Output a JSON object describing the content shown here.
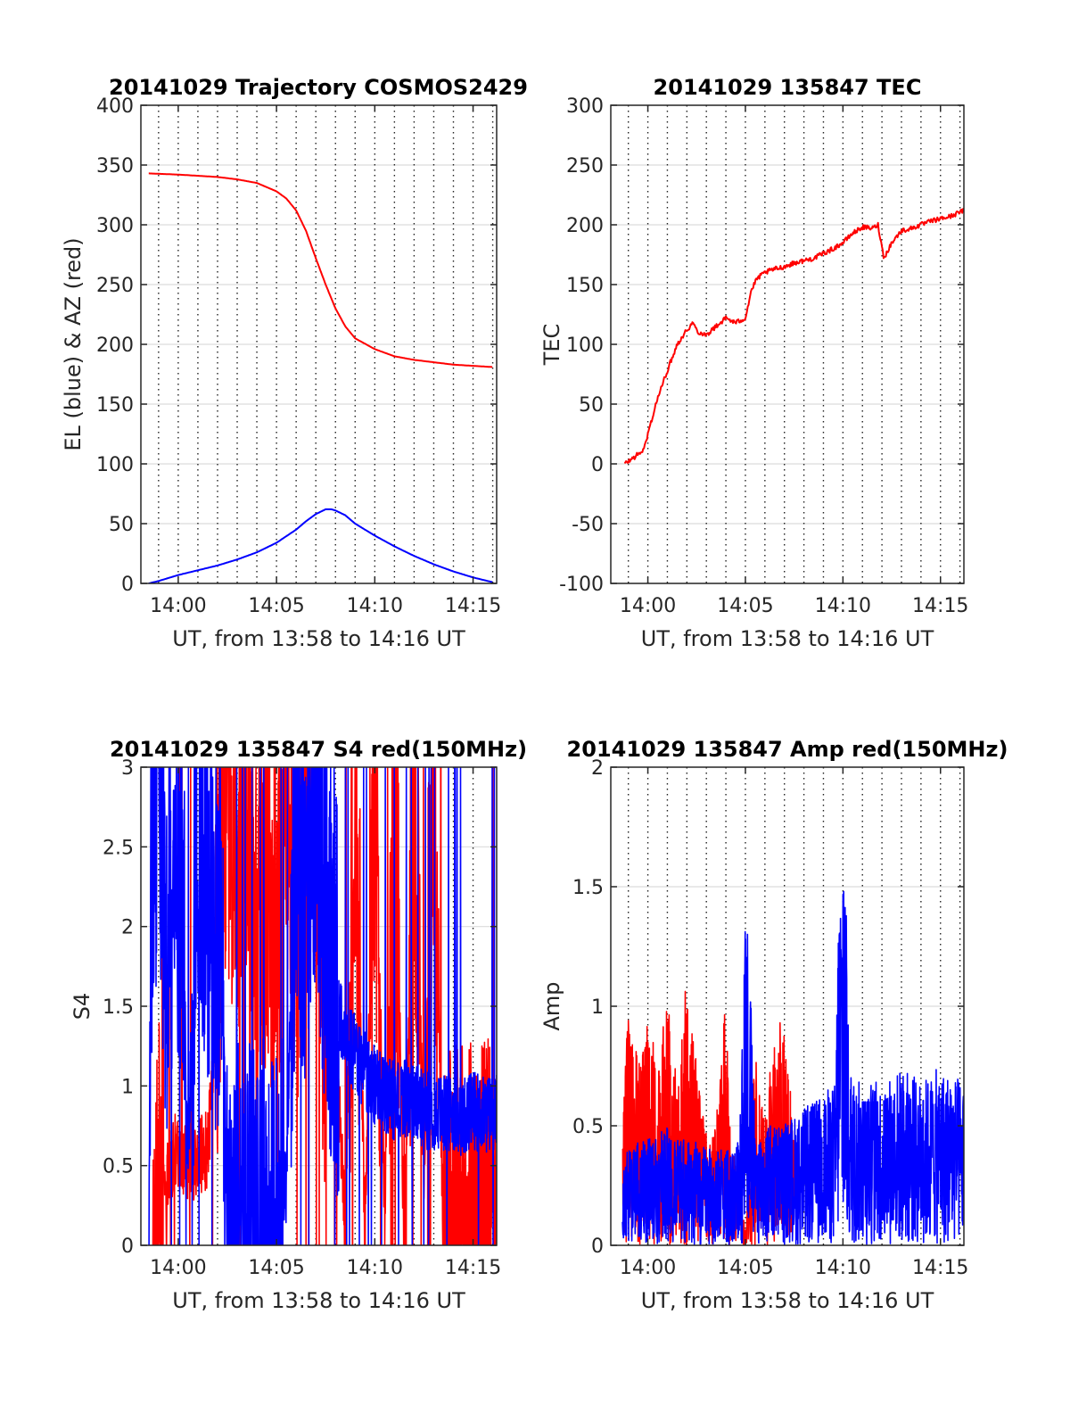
{
  "figure": {
    "background": "#ffffff",
    "colors": {
      "red_series": "#ff0000",
      "blue_series": "#0000ff",
      "axis": "#262626",
      "grid": "#dcdcdc"
    }
  },
  "chart_data": [
    {
      "type": "line",
      "title": "20141029 Trajectory COSMOS2429",
      "xlabel": "UT, from 13:58 to 14:16 UT",
      "ylabel": "EL (blue) & AZ (red)",
      "x_unit": "minutes after 14:00 UT",
      "xlim": [
        -1.9,
        16.2
      ],
      "ylim": [
        0,
        400
      ],
      "x_ticks": [
        0,
        5,
        10,
        15
      ],
      "x_tick_labels": [
        "14:00",
        "14:05",
        "14:10",
        "14:15"
      ],
      "y_ticks": [
        0,
        50,
        100,
        150,
        200,
        250,
        300,
        350,
        400
      ],
      "y_tick_labels": [
        "0",
        "50",
        "100",
        "150",
        "200",
        "250",
        "300",
        "350",
        "400"
      ],
      "grid": "dotted vertical every minute, light horizontal at y ticks",
      "series": [
        {
          "color": "#ff0000",
          "x": [
            -1.5,
            0,
            1,
            2,
            3,
            4,
            5,
            5.5,
            6,
            6.5,
            7,
            7.5,
            8,
            8.5,
            9,
            10,
            11,
            12,
            13,
            14,
            15,
            16
          ],
          "y": [
            343,
            342,
            341,
            340,
            338,
            335,
            328,
            322,
            312,
            295,
            272,
            250,
            230,
            215,
            205,
            196,
            190,
            187,
            185,
            183,
            182,
            181
          ]
        },
        {
          "color": "#0000ff",
          "x": [
            -1.5,
            -1,
            0,
            1,
            2,
            3,
            4,
            5,
            6,
            6.5,
            7,
            7.5,
            7.8,
            8,
            8.5,
            9,
            10,
            11,
            12,
            13,
            14,
            15,
            16
          ],
          "y": [
            0,
            2,
            7,
            11,
            15,
            20,
            26,
            34,
            45,
            52,
            58,
            62,
            62,
            61,
            57,
            50,
            40,
            31,
            23,
            16,
            10,
            5,
            1
          ]
        }
      ]
    },
    {
      "type": "line",
      "title": "20141029 135847 TEC",
      "xlabel": "UT, from 13:58 to 14:16 UT",
      "ylabel": "TEC",
      "x_unit": "minutes after 14:00 UT",
      "xlim": [
        -1.9,
        16.2
      ],
      "ylim": [
        -100,
        300
      ],
      "x_ticks": [
        0,
        5,
        10,
        15
      ],
      "x_tick_labels": [
        "14:00",
        "14:05",
        "14:10",
        "14:15"
      ],
      "y_ticks": [
        -100,
        -50,
        0,
        50,
        100,
        150,
        200,
        250,
        300
      ],
      "y_tick_labels": [
        "-100",
        "-50",
        "0",
        "50",
        "100",
        "150",
        "200",
        "250",
        "300"
      ],
      "grid": "dotted vertical every minute, light horizontal at y ticks",
      "series": [
        {
          "color": "#ff0000",
          "x": [
            -1.2,
            -1,
            -0.5,
            -0.2,
            0,
            0.5,
            1,
            1.5,
            2,
            2.3,
            2.6,
            3,
            3.5,
            4,
            4.5,
            5,
            5.3,
            5.6,
            6,
            6.5,
            7,
            7.5,
            8,
            8.5,
            9,
            9.5,
            10,
            10.5,
            11,
            11.5,
            11.8,
            12.1,
            12.5,
            13,
            13.5,
            14,
            14.5,
            15,
            15.5,
            16.2
          ],
          "y": [
            0,
            2,
            8,
            12,
            25,
            55,
            78,
            100,
            112,
            118,
            110,
            108,
            115,
            122,
            118,
            122,
            145,
            155,
            160,
            163,
            165,
            168,
            170,
            172,
            176,
            180,
            185,
            193,
            198,
            197,
            200,
            172,
            185,
            195,
            197,
            200,
            203,
            205,
            207,
            212
          ]
        }
      ]
    },
    {
      "type": "line",
      "title": "20141029 135847 S4 red(150MHz)",
      "xlabel": "UT, from 13:58 to 14:16 UT",
      "ylabel": "S4",
      "x_unit": "minutes after 14:00 UT",
      "xlim": [
        -1.9,
        16.2
      ],
      "ylim": [
        0,
        3
      ],
      "x_ticks": [
        0,
        5,
        10,
        15
      ],
      "x_tick_labels": [
        "14:00",
        "14:05",
        "14:10",
        "14:15"
      ],
      "y_ticks": [
        0,
        0.5,
        1,
        1.5,
        2,
        2.5,
        3
      ],
      "y_tick_labels": [
        "0",
        "0.5",
        "1",
        "1.5",
        "2",
        "2.5",
        "3"
      ],
      "grid": "dotted vertical every minute, light horizontal at y ticks",
      "note": "dense noisy series, saturating at axis top",
      "series": [
        {
          "color": "#ff0000",
          "x": [
            -1.3,
            -0.3,
            0,
            0.5,
            1,
            1.5,
            1.7,
            2.1,
            2.5,
            3,
            3.5,
            4,
            4.5,
            5,
            5.5,
            6,
            6.5,
            7,
            7.5,
            8,
            8.5,
            9,
            9.5,
            10,
            10.5,
            11,
            11.5,
            12,
            12.5,
            13,
            13.5,
            14,
            16.2
          ],
          "y": [
            0,
            0.55,
            0.6,
            0.5,
            0.55,
            0.6,
            0.9,
            2.2,
            3.0,
            2.6,
            3.0,
            1.8,
            2.5,
            1.7,
            3.0,
            2.0,
            2.8,
            3.0,
            1.4,
            1.2,
            0.2,
            3.0,
            0.1,
            3.0,
            0.2,
            3.0,
            0.0,
            3.0,
            0.5,
            3.0,
            0.0,
            0.0,
            0.0
          ]
        },
        {
          "color": "#0000ff",
          "x": [
            -1.5,
            -1.4,
            -1,
            -0.6,
            -0.2,
            0.2,
            0.5,
            1,
            1.3,
            1.6,
            2,
            2.2,
            2.5,
            3,
            3.5,
            4,
            4.5,
            5,
            5.5,
            6,
            6.5,
            7,
            7.5,
            8,
            8.5,
            9,
            9.5,
            10,
            10.5,
            11,
            11.5,
            12,
            12.5,
            13,
            13.5,
            14,
            14.5,
            15,
            15.5,
            16.2
          ],
          "y": [
            0,
            2.2,
            3.0,
            1.8,
            2.6,
            2.3,
            0.5,
            2.8,
            2.0,
            2.4,
            1.6,
            2.5,
            0.0,
            0.0,
            0.0,
            0.0,
            0.0,
            0.0,
            0.4,
            2.8,
            2.2,
            3.0,
            2.0,
            1.6,
            1.3,
            1.2,
            1.1,
            1.0,
            0.95,
            0.9,
            0.92,
            0.88,
            0.85,
            0.85,
            0.82,
            0.84,
            0.8,
            0.85,
            0.82,
            0.83
          ]
        }
      ]
    },
    {
      "type": "line",
      "title": "20141029 135847 Amp red(150MHz)",
      "xlabel": "UT, from 13:58 to 14:16 UT",
      "ylabel": "Amp",
      "x_unit": "minutes after 14:00 UT",
      "xlim": [
        -1.9,
        16.2
      ],
      "ylim": [
        0,
        2
      ],
      "x_ticks": [
        0,
        5,
        10,
        15
      ],
      "x_tick_labels": [
        "14:00",
        "14:05",
        "14:10",
        "14:15"
      ],
      "y_ticks": [
        0,
        0.5,
        1,
        1.5,
        2
      ],
      "y_tick_labels": [
        "0",
        "0.5",
        "1",
        "1.5",
        "2"
      ],
      "grid": "dotted vertical every minute, light horizontal at y ticks",
      "note": "dense noisy series",
      "series": [
        {
          "color": "#ff0000",
          "x": [
            -1.3,
            -1,
            -0.5,
            0,
            0.5,
            1,
            1.5,
            2,
            2.5,
            3,
            3.5,
            4,
            4.2,
            4.5,
            5,
            5.5,
            6,
            6.5,
            7,
            7.5
          ],
          "y": [
            0.4,
            0.9,
            0.75,
            0.85,
            0.7,
            0.9,
            0.6,
            1.0,
            0.65,
            0.4,
            0.45,
            0.9,
            0.5,
            0.3,
            0.05,
            0.7,
            0.5,
            0.75,
            0.88,
            0.4
          ]
        },
        {
          "color": "#0000ff",
          "x": [
            -1.3,
            -1,
            0,
            1,
            2,
            3,
            4,
            4.7,
            5.0,
            5.2,
            5.5,
            6,
            7,
            8,
            9,
            9.6,
            9.8,
            10.1,
            10.3,
            10.6,
            11,
            12,
            13,
            14,
            15,
            16.2
          ],
          "y": [
            0.3,
            0.35,
            0.4,
            0.45,
            0.4,
            0.35,
            0.35,
            0.4,
            1.35,
            1.1,
            0.4,
            0.45,
            0.45,
            0.5,
            0.55,
            0.6,
            1.4,
            1.5,
            0.7,
            0.6,
            0.6,
            0.6,
            0.65,
            0.6,
            0.65,
            0.6
          ]
        }
      ]
    }
  ]
}
